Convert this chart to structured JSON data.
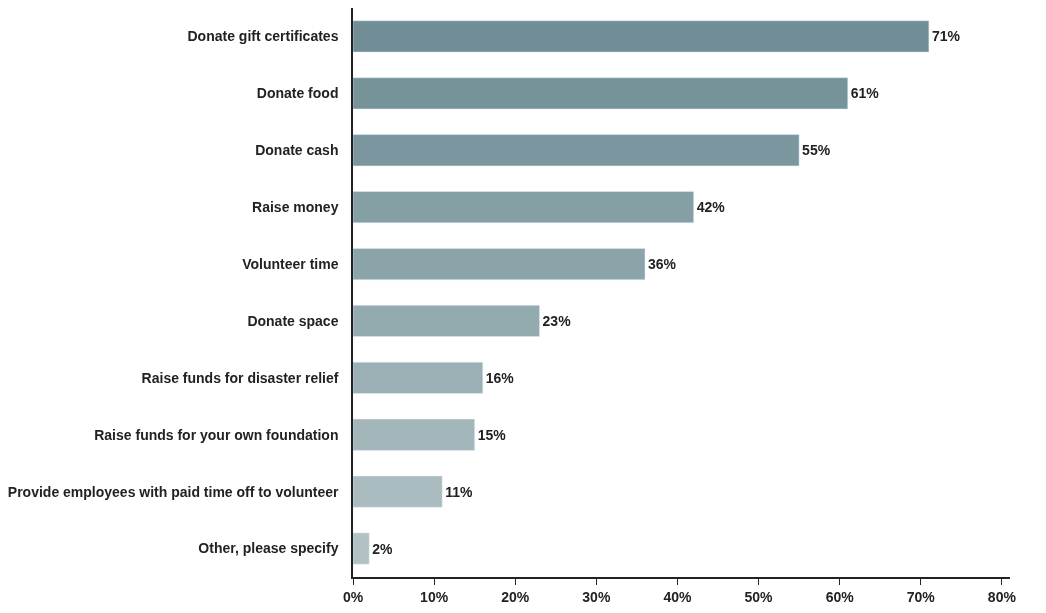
{
  "chart_data": {
    "type": "bar",
    "orientation": "horizontal",
    "categories": [
      "Donate gift certificates",
      "Donate food",
      "Donate cash",
      "Raise money",
      "Volunteer time",
      "Donate space",
      "Raise funds for disaster relief",
      "Raise funds for your own foundation",
      "Provide employees with paid time off to volunteer",
      "Other, please specify"
    ],
    "values": [
      71,
      61,
      55,
      42,
      36,
      23,
      16,
      15,
      11,
      2
    ],
    "value_labels": [
      "71%",
      "61%",
      "55%",
      "42%",
      "36%",
      "23%",
      "16%",
      "15%",
      "11%",
      "2%"
    ],
    "colors": [
      "#718e96",
      "#76939a",
      "#7b969e",
      "#84a0a5",
      "#8aa4a9",
      "#93aaaf",
      "#9bb0b5",
      "#a3b6ba",
      "#aabcbf",
      "#b1c1c4"
    ],
    "xlim": [
      0,
      81
    ],
    "xticks": [
      {
        "value": 0,
        "label": "0%"
      },
      {
        "value": 10,
        "label": "10%"
      },
      {
        "value": 20,
        "label": "20%"
      },
      {
        "value": 30,
        "label": "30%"
      },
      {
        "value": 40,
        "label": "40%"
      },
      {
        "value": 50,
        "label": "50%"
      },
      {
        "value": 60,
        "label": "60%"
      },
      {
        "value": 70,
        "label": "70%"
      },
      {
        "value": 80,
        "label": "80%"
      }
    ],
    "legend": false
  }
}
